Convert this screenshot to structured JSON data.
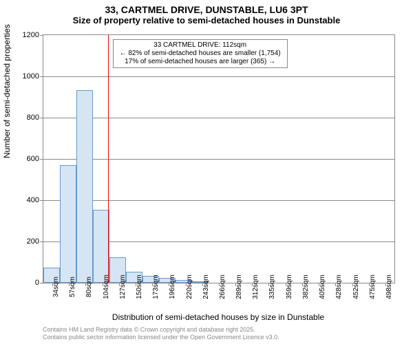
{
  "title": "33, CARTMEL DRIVE, DUNSTABLE, LU6 3PT",
  "subtitle": "Size of property relative to semi-detached houses in Dunstable",
  "ylabel": "Number of semi-detached properties",
  "xlabel": "Distribution of semi-detached houses by size in Dunstable",
  "footer_line1": "Contains HM Land Registry data © Crown copyright and database right 2025.",
  "footer_line2": "Contains public sector information licensed under the Open Government Licence v3.0.",
  "title_fontsize": 14,
  "subtitle_fontsize": 13,
  "chart": {
    "type": "histogram",
    "background_color": "#ffffff",
    "grid_color": "#888888",
    "axis_color": "#888888",
    "bar_fill": "#d6e5f4",
    "bar_stroke": "#6699cc",
    "refline_color": "#ff0000",
    "refline_width": 1,
    "ylim": [
      0,
      1200
    ],
    "yticks": [
      0,
      200,
      400,
      600,
      800,
      1000,
      1200
    ],
    "xticks": [
      "34sqm",
      "57sqm",
      "80sqm",
      "104sqm",
      "127sqm",
      "150sqm",
      "173sqm",
      "196sqm",
      "220sqm",
      "243sqm",
      "266sqm",
      "289sqm",
      "312sqm",
      "335sqm",
      "359sqm",
      "382sqm",
      "405sqm",
      "428sqm",
      "452sqm",
      "475sqm",
      "498sqm"
    ],
    "xlim": [
      22,
      510
    ],
    "bar_width_sqm": 23,
    "bars": [
      {
        "x": 22,
        "value": 75
      },
      {
        "x": 45,
        "value": 570
      },
      {
        "x": 68,
        "value": 935
      },
      {
        "x": 91,
        "value": 355
      },
      {
        "x": 114,
        "value": 125
      },
      {
        "x": 137,
        "value": 55
      },
      {
        "x": 160,
        "value": 35
      },
      {
        "x": 183,
        "value": 22
      },
      {
        "x": 206,
        "value": 12
      },
      {
        "x": 229,
        "value": 5
      }
    ],
    "reference_x": 112,
    "annotation": {
      "line1": "33 CARTMEL DRIVE: 112sqm",
      "line2": "← 82% of semi-detached houses are smaller (1,754)",
      "line3": "17% of semi-detached houses are larger (365) →",
      "x_center": 235,
      "y_top": 56
    }
  }
}
